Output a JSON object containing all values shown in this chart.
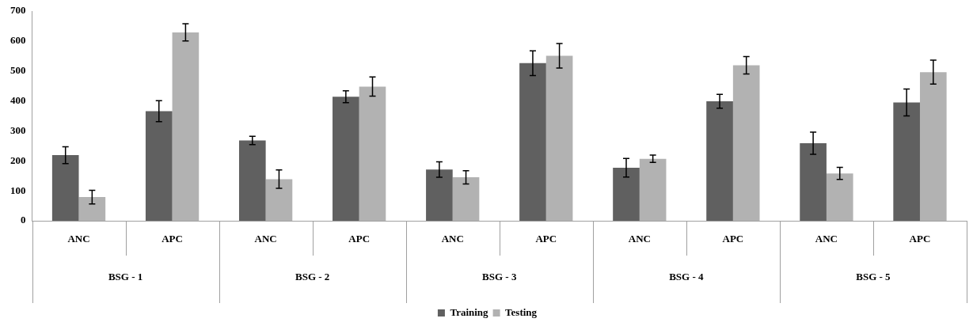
{
  "chart_data": {
    "type": "bar",
    "categories": [
      "ANC",
      "APC",
      "ANC",
      "APC",
      "ANC",
      "APC",
      "ANC",
      "APC",
      "ANC",
      "APC"
    ],
    "annotations": [
      "BSG - 1",
      "BSG - 2",
      "BSG - 3",
      "BSG - 4",
      "BSG - 5"
    ],
    "series": [
      {
        "name": "Training",
        "color": "#606060",
        "values": [
          219,
          366,
          268,
          414,
          171,
          526,
          177,
          399,
          259,
          395
        ],
        "errors": [
          28,
          35,
          14,
          20,
          26,
          41,
          31,
          23,
          37,
          45
        ]
      },
      {
        "name": "Testing",
        "color": "#b2b2b2",
        "values": [
          79,
          629,
          139,
          448,
          145,
          551,
          207,
          519,
          158,
          496
        ],
        "errors": [
          23,
          29,
          31,
          32,
          22,
          41,
          12,
          29,
          20,
          40
        ]
      }
    ],
    "ylim": [
      0,
      700
    ],
    "yticks": [
      0,
      100,
      200,
      300,
      400,
      500,
      600,
      700
    ],
    "grid": false,
    "legend": "bottom"
  }
}
